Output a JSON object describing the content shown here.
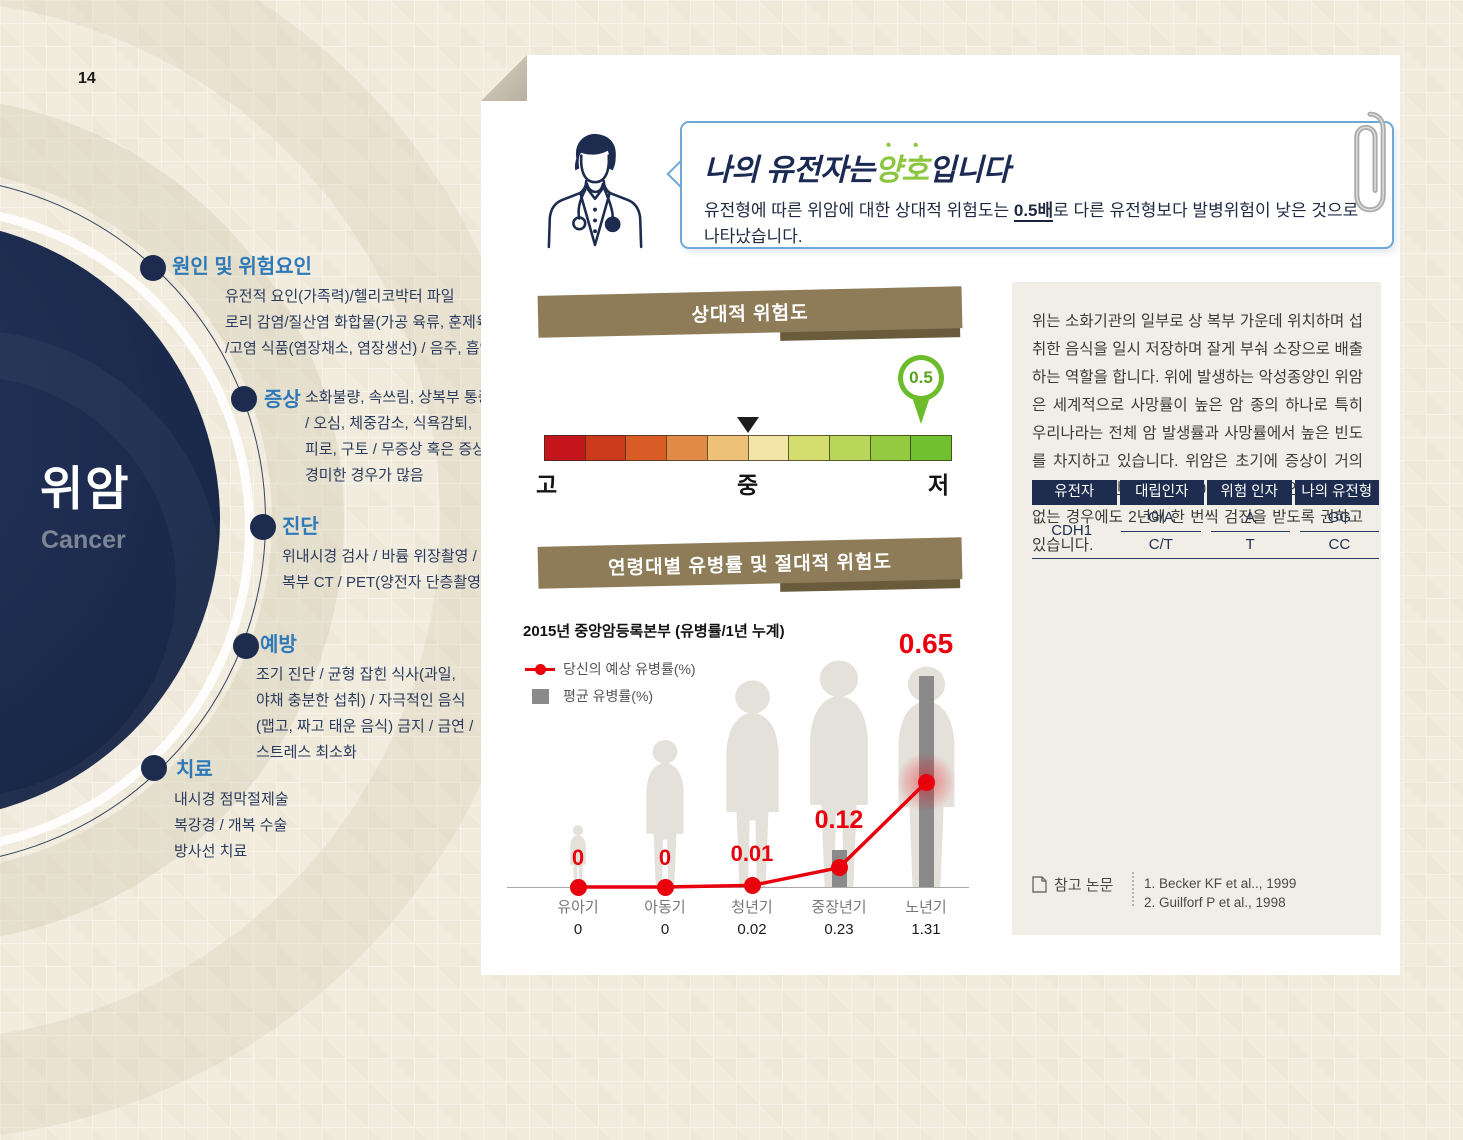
{
  "page_number": "14",
  "left_panel": {
    "title": "위암",
    "subtitle": "Cancer",
    "sections": [
      {
        "label": "원인 및 위험요인",
        "lines": [
          "유전적 요인(가족력)/헬리코박터 파일",
          "로리 감염/질산염 화합물(가공 육류, 훈제육)",
          "/고염 식품(염장채소, 염장생선) / 음주, 흡연"
        ]
      },
      {
        "label": "증상",
        "lines": [
          "소화불량, 속쓰림, 상복부 통증",
          "/ 오심, 체중감소, 식욕감퇴,",
          "피로, 구토 / 무증상 혹은 증상이",
          "경미한 경우가 많음"
        ]
      },
      {
        "label": "진단",
        "lines": [
          "위내시경 검사 / 바륨 위장촬영 /",
          "복부 CT / PET(양전자 단층촬영)"
        ]
      },
      {
        "label": "예방",
        "lines": [
          "조기 진단 / 균형 잡힌 식사(과일,",
          "야채 충분한 섭취) / 자극적인 음식",
          "(맵고, 짜고 태운 음식) 금지 / 금연 /",
          "스트레스 최소화"
        ]
      },
      {
        "label": "치료",
        "lines": [
          "내시경 점막절제술",
          "복강경 / 개복 수술",
          "방사선 치료"
        ]
      }
    ]
  },
  "report": {
    "headline": {
      "prefix": "나의 유전자는",
      "highlight": "양호",
      "suffix": "입니다"
    },
    "description": {
      "before": "유전형에 따른 위암에 대한 상대적 위험도는 ",
      "emphasis": "0.5배",
      "after": "로 다른 유전형보다 발병위험이 낮은 것으로 나타났습니다."
    }
  },
  "relative_risk": {
    "banner": "상대적 위험도",
    "value": "0.5",
    "labels": [
      "고",
      "중",
      "저"
    ],
    "segment_colors": [
      "#c4161c",
      "#cc3a1b",
      "#d75c26",
      "#e18a45",
      "#eec179",
      "#f3e5a7",
      "#d3de6f",
      "#b8d75a",
      "#94cb41",
      "#70c02f"
    ]
  },
  "age_chart": {
    "banner": "연령대별 유병률 및 절대적 위험도",
    "title": "2015년 중앙암등록본부 (유병률/1년 누계)",
    "legend": {
      "line_label": "당신의 예상 유병률(%)",
      "bar_label": "평균 유병률(%)"
    },
    "chart_data": {
      "type": "line",
      "categories": [
        "유아기",
        "아동기",
        "청년기",
        "중장년기",
        "노년기"
      ],
      "series": [
        {
          "name": "당신의 예상 유병률(%)",
          "type": "line",
          "color": "#e8000d",
          "values": [
            0,
            0,
            0.01,
            0.12,
            0.65
          ],
          "labels": [
            "0",
            "0",
            "0.01",
            "0.12",
            "0.65"
          ]
        },
        {
          "name": "평균 유병률(%)",
          "type": "bar",
          "color": "#8a8a8a",
          "values": [
            0,
            0,
            0.02,
            0.23,
            1.31
          ],
          "labels": [
            "0",
            "0",
            "0.02",
            "0.23",
            "1.31"
          ]
        }
      ],
      "ylim": [
        0,
        1.4
      ],
      "grid": false,
      "legend_position": "top-left"
    }
  },
  "info_panel": {
    "paragraph": "위는 소화기관의 일부로 상 복부 가운데 위치하며 섭취한 음식을 일시 저장하며 잘게 부숴 소장으로 배출하는 역할을 합니다. 위에 발생하는 악성종양인 위암은 세계적으로 사망률이 높은 암 종의 하나로 특히 우리나라는 전체 암 발생률과 사망률에서 높은 빈도를 차지하고 있습니다. 위암은 초기에 증상이 거의 없고 조기진단이 어려워 40세 이상의 성인은 증상이 없는 경우에도 2년에 한 번씩 검진을 받도록 권하고 있습니다.",
    "table": {
      "headers": [
        "유전자",
        "대립인자",
        "위험 인자",
        "나의 유전형"
      ],
      "gene": "CDH1",
      "rows": [
        [
          "G/A",
          "A",
          "GG"
        ],
        [
          "C/T",
          "T",
          "CC"
        ]
      ]
    },
    "references": {
      "label": "참고 논문",
      "items": [
        "1. Becker KF et al.., 1999",
        "2. Guilforf P et al., 1998"
      ]
    }
  },
  "colors": {
    "navy": "#1c2b4e",
    "accent_blue": "#2e79b9",
    "good_green": "#8cc63e",
    "pin_green": "#6cbc2c",
    "risk_red": "#e8000d",
    "bar_gray": "#8a8a8a",
    "ribbon_olive": "#8d7c57",
    "ribbon_dark": "#6a5b3c"
  }
}
